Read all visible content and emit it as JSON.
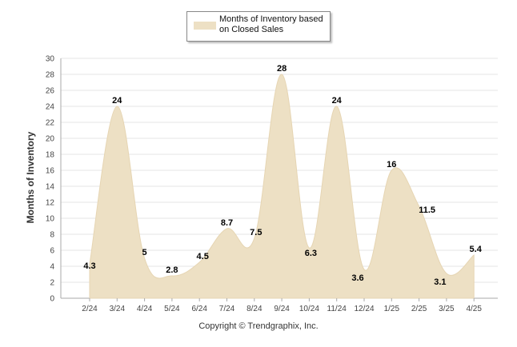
{
  "chart_data": {
    "type": "area",
    "categories": [
      "2/24",
      "3/24",
      "4/24",
      "5/24",
      "6/24",
      "7/24",
      "8/24",
      "9/24",
      "10/24",
      "11/24",
      "12/24",
      "1/25",
      "2/25",
      "3/25",
      "4/25"
    ],
    "series": [
      {
        "name": "Months of Inventory based on Closed Sales",
        "values": [
          4.3,
          24,
          5,
          2.8,
          4.5,
          8.7,
          7.5,
          28,
          6.3,
          24,
          3.6,
          16,
          11.5,
          3.1,
          5.4
        ]
      }
    ],
    "data_labels": [
      "4.3",
      "24",
      "5",
      "2.8",
      "4.5",
      "8.7",
      "7.5",
      "28",
      "6.3",
      "24",
      "3.6",
      "16",
      "11.5",
      "3.1",
      "5.4"
    ],
    "ylabel": "Months of Inventory",
    "xlabel": "",
    "ylim": [
      0,
      30
    ],
    "yticks": [
      "0",
      "2",
      "4",
      "6",
      "8",
      "10",
      "12",
      "14",
      "16",
      "18",
      "20",
      "22",
      "24",
      "26",
      "28",
      "30"
    ],
    "grid": true,
    "legend_position": "top-center",
    "colors": {
      "fill": "#ede0c4",
      "stroke": "#e6d5b3",
      "grid": "#e6e6e6",
      "axis": "#aaaaaa"
    }
  },
  "legend": {
    "label": "Months of Inventory based on Closed Sales"
  },
  "footer": {
    "copyright": "Copyright © Trendgraphix, Inc."
  }
}
